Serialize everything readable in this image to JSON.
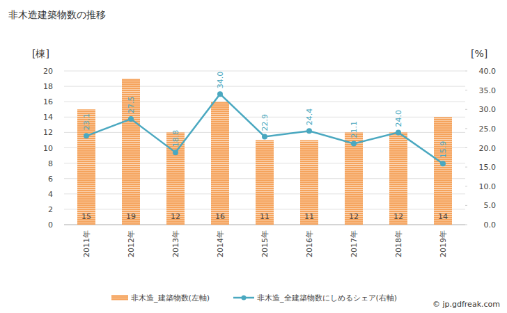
{
  "chart_data": {
    "type": "bar",
    "title": "非木造建築物数の推移",
    "y_label": "[棟]",
    "y2_label": "[%]",
    "annotations": [
      "© jp.gdfreak.com"
    ],
    "categories": [
      "2011年",
      "2012年",
      "2013年",
      "2014年",
      "2015年",
      "2016年",
      "2017年",
      "2018年",
      "2019年"
    ],
    "series": [
      {
        "name": "非木造_建築物数(左軸)",
        "type": "bar",
        "color": "#f5a35c",
        "values": [
          15,
          19,
          12,
          16,
          11,
          11,
          12,
          12,
          14
        ]
      },
      {
        "name": "非木造_全建築物数にしめるシェア(右軸)",
        "type": "line",
        "axis": "y2",
        "color": "#4aa8c0",
        "marker": "circle",
        "values": [
          23.1,
          27.5,
          18.8,
          34.0,
          22.9,
          24.4,
          21.1,
          24.0,
          15.9
        ],
        "value_labels": [
          "23.1",
          "27.5",
          "18.8",
          "34.0",
          "22.9",
          "24.4",
          "21.1",
          "24.0",
          "15.9"
        ]
      }
    ],
    "ylim": [
      0,
      20
    ],
    "yticks": [
      0,
      2,
      4,
      6,
      8,
      10,
      12,
      14,
      16,
      18,
      20
    ],
    "y2lim": [
      0,
      40
    ],
    "y2ticks": [
      {
        "value": 0,
        "label": "0.0"
      },
      {
        "value": 5,
        "label": "5.0"
      },
      {
        "value": 10,
        "label": "10.0"
      },
      {
        "value": 15,
        "label": "15.0"
      },
      {
        "value": 20,
        "label": "20.0"
      },
      {
        "value": 25,
        "label": "25.0"
      },
      {
        "value": 30,
        "label": "30.0"
      },
      {
        "value": 35,
        "label": "35.0"
      },
      {
        "value": 40,
        "label": "40.0"
      }
    ],
    "grid": true,
    "data_labels": true,
    "legend": "bottom"
  }
}
